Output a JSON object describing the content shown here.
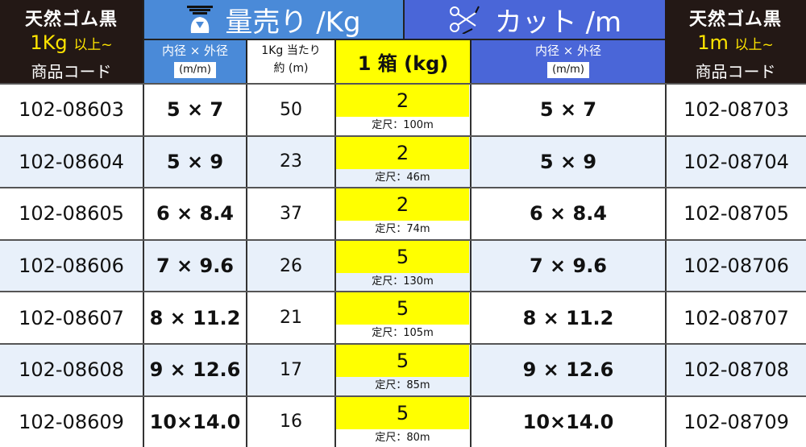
{
  "left_header": {
    "title": "天然ゴム黒",
    "min": "1Kg",
    "min_suffix": "以上~",
    "code_label": "商品コード"
  },
  "right_header": {
    "title": "天然ゴム黒",
    "min": "1m",
    "min_suffix": "以上~",
    "code_label": "商品コード"
  },
  "weight_section": {
    "title": "量売り /Kg",
    "icon": "scale-icon",
    "dims_label": "内径 × 外径",
    "dims_unit": "(m/m)",
    "perkg_label1": "1Kg 当たり",
    "perkg_label2": "約 (m)",
    "box_label": "1 箱 (kg)"
  },
  "cut_section": {
    "title": "カット /m",
    "icon": "scissors-icon",
    "dims_label": "内径 × 外径",
    "dims_unit": "(m/m)"
  },
  "colors": {
    "header_dark": "#231815",
    "weight_blue": "#4a8ad8",
    "cut_blue": "#4a66d8",
    "box_yellow": "#ffff00",
    "alt_row": "#e8f0fa"
  },
  "rows": [
    {
      "code_kg": "102-08603",
      "dims": "5 × 7",
      "per_kg": "50",
      "box": "2",
      "length": "定尺：100m",
      "dims_cut": "5 × 7",
      "code_m": "102-08703"
    },
    {
      "code_kg": "102-08604",
      "dims": "5 × 9",
      "per_kg": "23",
      "box": "2",
      "length": "定尺：46m",
      "dims_cut": "5 × 9",
      "code_m": "102-08704"
    },
    {
      "code_kg": "102-08605",
      "dims": "6 × 8.4",
      "per_kg": "37",
      "box": "2",
      "length": "定尺：74m",
      "dims_cut": "6 × 8.4",
      "code_m": "102-08705"
    },
    {
      "code_kg": "102-08606",
      "dims": "7 × 9.6",
      "per_kg": "26",
      "box": "5",
      "length": "定尺：130m",
      "dims_cut": "7 × 9.6",
      "code_m": "102-08706"
    },
    {
      "code_kg": "102-08607",
      "dims": "8 × 11.2",
      "per_kg": "21",
      "box": "5",
      "length": "定尺：105m",
      "dims_cut": "8 × 11.2",
      "code_m": "102-08707"
    },
    {
      "code_kg": "102-08608",
      "dims": "9 × 12.6",
      "per_kg": "17",
      "box": "5",
      "length": "定尺：85m",
      "dims_cut": "9 × 12.6",
      "code_m": "102-08708"
    },
    {
      "code_kg": "102-08609",
      "dims": "10×14.0",
      "per_kg": "16",
      "box": "5",
      "length": "定尺：80m",
      "dims_cut": "10×14.0",
      "code_m": "102-08709"
    }
  ]
}
